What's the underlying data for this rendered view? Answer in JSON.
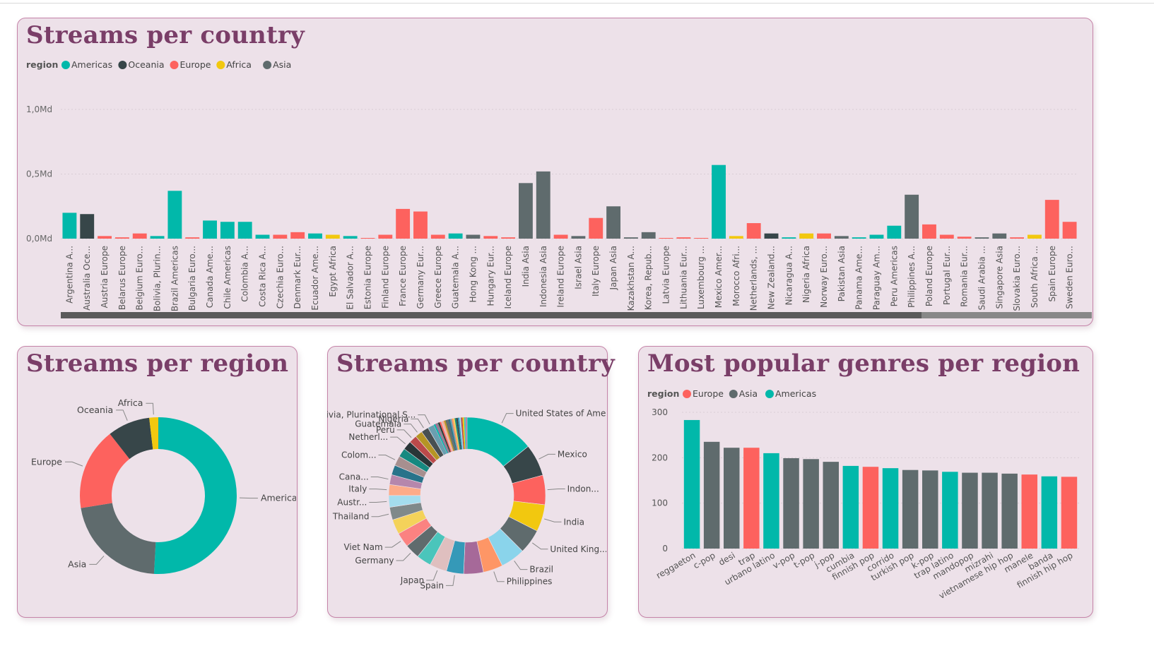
{
  "colors": {
    "Americas": "#01b8aa",
    "Oceania": "#374649",
    "Europe": "#fd625e",
    "Africa": "#f2c80f",
    "Asia": "#5f6b6d",
    "title": "#7a3e68",
    "card_bg": "#ede1e9",
    "card_border": "#c583a8"
  },
  "legend_title": "region",
  "region_names": [
    "Americas",
    "Oceania",
    "Europe",
    "Africa",
    "Asia"
  ],
  "card1": {
    "title": "Streams per country"
  },
  "card2": {
    "title": "Streams per region"
  },
  "card3": {
    "title": "Streams per country"
  },
  "card4": {
    "title": "Most popular genres per region",
    "legend": [
      "Europe",
      "Asia",
      "Americas"
    ]
  },
  "chart_data": [
    {
      "type": "bar",
      "title": "Streams per country",
      "legend": [
        "Americas",
        "Oceania",
        "Europe",
        "Africa",
        "Asia"
      ],
      "yticks": [
        "0,0Md",
        "0,5Md",
        "1,0Md"
      ],
      "ylim": [
        0,
        1.2
      ],
      "unit": "Md",
      "categories": [
        "Argentina A...",
        "Australia Oce...",
        "Austria Europe",
        "Belarus Europe",
        "Belgium Euro...",
        "Bolivia, Plurin...",
        "Brazil Americas",
        "Bulgaria Euro...",
        "Canada Ame...",
        "Chile Americas",
        "Colombia A...",
        "Costa Rica A...",
        "Czechia Euro...",
        "Denmark Eur...",
        "Ecuador Ame...",
        "Egypt Africa",
        "El Salvador A...",
        "Estonia Europe",
        "Finland Europe",
        "France Europe",
        "Germany Eur...",
        "Greece Europe",
        "Guatemala A...",
        "Hong Kong ...",
        "Hungary Eur...",
        "Iceland Europe",
        "India Asia",
        "Indonesia Asia",
        "Ireland Europe",
        "Israel Asia",
        "Italy Europe",
        "Japan Asia",
        "Kazakhstan A...",
        "Korea, Repub...",
        "Latvia Europe",
        "Lithuania Eur...",
        "Luxembourg ...",
        "Mexico Amer...",
        "Morocco Afri...",
        "Netherlands, ...",
        "New Zealand...",
        "Nicaragua A...",
        "Nigeria Africa",
        "Norway Euro...",
        "Pakistan Asia",
        "Panama Ame...",
        "Paraguay Am...",
        "Peru Americas",
        "Philippines A...",
        "Poland Europe",
        "Portugal Eur...",
        "Romania Eur...",
        "Saudi Arabia ...",
        "Singapore Asia",
        "Slovakia Euro...",
        "South Africa ...",
        "Spain Europe",
        "Sweden Euro..."
      ],
      "regions": [
        "Americas",
        "Oceania",
        "Europe",
        "Europe",
        "Europe",
        "Americas",
        "Americas",
        "Europe",
        "Americas",
        "Americas",
        "Americas",
        "Americas",
        "Europe",
        "Europe",
        "Americas",
        "Africa",
        "Americas",
        "Europe",
        "Europe",
        "Europe",
        "Europe",
        "Europe",
        "Americas",
        "Asia",
        "Europe",
        "Europe",
        "Asia",
        "Asia",
        "Europe",
        "Asia",
        "Europe",
        "Asia",
        "Asia",
        "Asia",
        "Europe",
        "Europe",
        "Europe",
        "Americas",
        "Africa",
        "Europe",
        "Oceania",
        "Americas",
        "Africa",
        "Europe",
        "Asia",
        "Americas",
        "Americas",
        "Americas",
        "Asia",
        "Europe",
        "Europe",
        "Europe",
        "Asia",
        "Asia",
        "Europe",
        "Africa",
        "Europe",
        "Europe"
      ],
      "values": [
        0.2,
        0.19,
        0.02,
        0.01,
        0.04,
        0.02,
        0.37,
        0.01,
        0.14,
        0.13,
        0.13,
        0.03,
        0.03,
        0.05,
        0.04,
        0.03,
        0.02,
        0.005,
        0.03,
        0.23,
        0.21,
        0.03,
        0.04,
        0.03,
        0.02,
        0.01,
        0.43,
        0.52,
        0.03,
        0.02,
        0.16,
        0.25,
        0.01,
        0.05,
        0.005,
        0.01,
        0.005,
        0.57,
        0.02,
        0.12,
        0.04,
        0.01,
        0.04,
        0.04,
        0.02,
        0.01,
        0.03,
        0.1,
        0.34,
        0.11,
        0.03,
        0.015,
        0.01,
        0.04,
        0.01,
        0.03,
        0.3,
        0.13
      ]
    },
    {
      "type": "pie",
      "title": "Streams per region",
      "labels": [
        "Americas",
        "Asia",
        "Europe",
        "Oceania",
        "Africa"
      ],
      "values": [
        49.5,
        21.0,
        16.5,
        8.5,
        1.8
      ]
    },
    {
      "type": "pie",
      "title": "Streams per country",
      "labels": [
        "United States of Amer...",
        "Mexico",
        "Indon...",
        "India",
        "United King...",
        "Brazil",
        "Philippines",
        "",
        "Spain",
        "Japan",
        "",
        "Germany",
        "Viet Nam",
        "",
        "Thailand",
        "Austr...",
        "Italy",
        "Cana...",
        "",
        "Colom...",
        "",
        "Netherl...",
        "Peru",
        "Guatemala",
        "Nigeria",
        "Bolivia, Plurinational S..."
      ],
      "values": [
        14.0,
        6.5,
        6.0,
        5.5,
        5.0,
        5.0,
        4.0,
        4.0,
        3.5,
        3.5,
        3.0,
        3.0,
        3.0,
        3.0,
        2.6,
        2.4,
        2.2,
        2.0,
        2.0,
        2.0,
        1.8,
        1.8,
        1.6,
        1.5,
        1.5,
        1.3
      ]
    },
    {
      "type": "bar",
      "title": "Most popular genres per region",
      "legend": [
        "Europe",
        "Asia",
        "Americas"
      ],
      "ylim": [
        0,
        300
      ],
      "yticks": [
        "0",
        "100",
        "200",
        "300"
      ],
      "categories": [
        "reggaeton",
        "c-pop",
        "desi",
        "trap",
        "urbano latino",
        "v-pop",
        "t-pop",
        "j-pop",
        "cumbia",
        "finnish pop",
        "corrido",
        "turkish pop",
        "k-pop",
        "trap latino",
        "mandopop",
        "mizrahi",
        "vietnamese hip hop",
        "manele",
        "banda",
        "finnish hip hop"
      ],
      "regions": [
        "Americas",
        "Asia",
        "Asia",
        "Europe",
        "Americas",
        "Asia",
        "Asia",
        "Asia",
        "Americas",
        "Europe",
        "Americas",
        "Asia",
        "Asia",
        "Americas",
        "Asia",
        "Asia",
        "Asia",
        "Europe",
        "Americas",
        "Europe"
      ],
      "values": [
        283,
        235,
        222,
        222,
        210,
        199,
        197,
        191,
        182,
        180,
        177,
        173,
        172,
        169,
        167,
        167,
        165,
        163,
        159,
        158
      ]
    }
  ]
}
